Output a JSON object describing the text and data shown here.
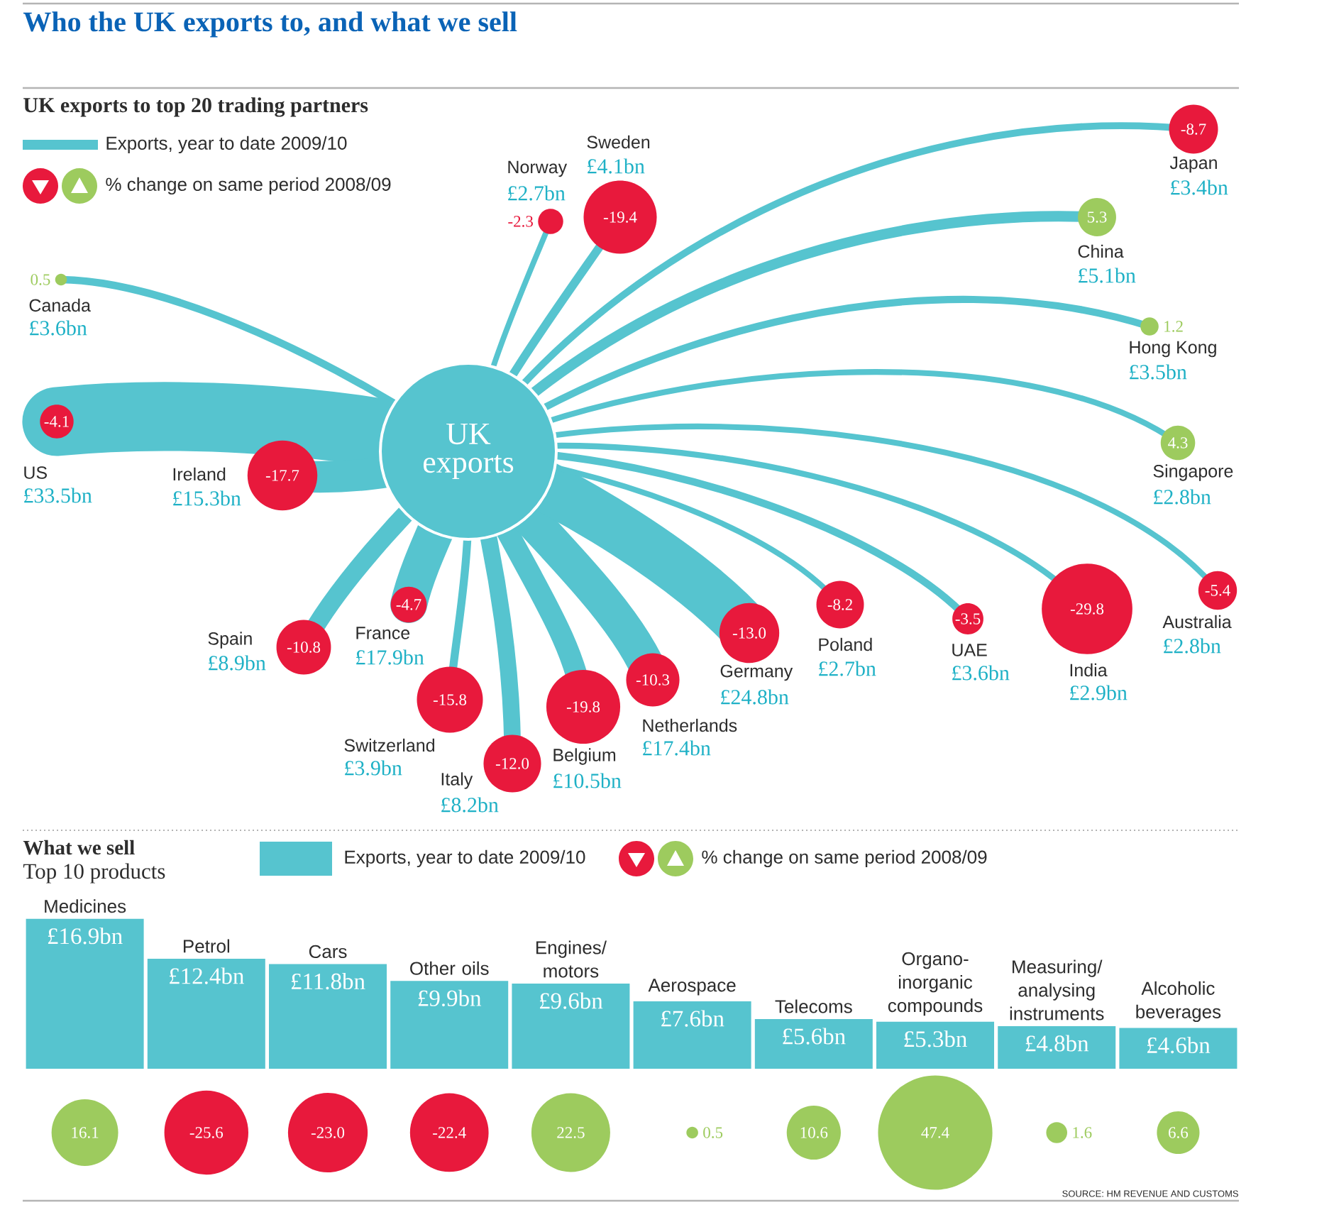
{
  "chart_data": [
    {
      "type": "other",
      "title": "Who the UK exports to, and what we sell",
      "subtitle": "UK exports to top 20 trading partners",
      "categories": [
        "Canada",
        "US",
        "Ireland",
        "Spain",
        "France",
        "Switzerland",
        "Italy",
        "Belgium",
        "Netherlands",
        "Germany",
        "Poland",
        "UAE",
        "India",
        "Australia",
        "Singapore",
        "Hong Kong",
        "China",
        "Japan",
        "Sweden",
        "Norway"
      ],
      "series": [
        {
          "name": "Exports, year to date 2009/10",
          "color": "#56c4cf",
          "values": [
            3.6,
            33.5,
            15.3,
            8.9,
            17.9,
            3.9,
            8.2,
            10.5,
            17.4,
            24.8,
            2.7,
            3.6,
            2.9,
            2.8,
            2.8,
            3.5,
            5.1,
            3.4,
            4.1,
            2.7
          ],
          "value_labels": [
            "£3.6bn",
            "£33.5bn",
            "£15.3bn",
            "£8.9bn",
            "£17.9bn",
            "£3.9bn",
            "£8.2bn",
            "£10.5bn",
            "£17.4bn",
            "£24.8bn",
            "£2.7bn",
            "£3.6bn",
            "£2.9bn",
            "£2.8bn",
            "£2.8bn",
            "£3.5bn",
            "£5.1bn",
            "£3.4bn",
            "£4.1bn",
            "£2.7bn"
          ]
        },
        {
          "name": "% change on same period 2008/09",
          "colors": [
            "#9dcb5e",
            "#e8193c",
            "#e8193c",
            "#e8193c",
            "#e8193c",
            "#e8193c",
            "#e8193c",
            "#e8193c",
            "#e8193c",
            "#e8193c",
            "#e8193c",
            "#e8193c",
            "#e8193c",
            "#e8193c",
            "#9dcb5e",
            "#9dcb5e",
            "#9dcb5e",
            "#e8193c",
            "#e8193c",
            "#e8193c"
          ],
          "values": [
            0.5,
            -4.1,
            -17.7,
            -10.8,
            -4.7,
            -15.8,
            -12.0,
            -19.8,
            -10.3,
            -13.0,
            -8.2,
            -3.5,
            -29.8,
            -5.4,
            4.3,
            1.2,
            5.3,
            -8.7,
            -19.4,
            -2.3
          ],
          "value_labels": [
            "0.5",
            "-4.1",
            "-17.7",
            "-10.8",
            "-4.7",
            "-15.8",
            "-12.0",
            "-19.8",
            "-10.3",
            "-13.0",
            "-8.2",
            "-3.5",
            "-29.8",
            "-5.4",
            "4.3",
            "1.2",
            "5.3",
            "-8.7",
            "-19.4",
            "-2.3"
          ]
        }
      ],
      "annotations": [
        "UK exports"
      ],
      "legend": "top left"
    },
    {
      "type": "bar",
      "title": "What we sell",
      "subtitle": "Top 10 products",
      "categories": [
        "Medicines",
        "Petrol",
        "Cars",
        "Other oils",
        "Engines/motors",
        "Aerospace",
        "Telecoms",
        "Organo-inorganic compounds",
        "Measuring/analysing instruments",
        "Alcoholic beverages"
      ],
      "series": [
        {
          "name": "Exports, year to date 2009/10",
          "color": "#56c4cf",
          "values": [
            16.9,
            12.4,
            11.8,
            9.9,
            9.6,
            7.6,
            5.6,
            5.3,
            4.8,
            4.6
          ],
          "value_labels": [
            "£16.9bn",
            "£12.4bn",
            "£11.8bn",
            "£9.9bn",
            "£9.6bn",
            "£7.6bn",
            "£5.6bn",
            "£5.3bn",
            "£4.8bn",
            "£4.6bn"
          ]
        }
      ],
      "legend": "top"
    },
    {
      "type": "other",
      "categories": [
        null,
        null,
        null,
        null,
        null,
        null,
        null,
        null,
        null,
        null
      ],
      "series": [
        {
          "name": "% change on same period 2008/09",
          "colors": [
            "#9dcb5e",
            "#e8193c",
            "#e8193c",
            "#e8193c",
            "#9dcb5e",
            "#9dcb5e",
            "#9dcb5e",
            "#9dcb5e",
            "#9dcb5e",
            "#9dcb5e"
          ],
          "values": [
            16.1,
            -25.6,
            -23.0,
            -22.4,
            22.5,
            0.5,
            10.6,
            47.4,
            1.6,
            6.6
          ],
          "value_labels": [
            "16.1",
            "-25.6",
            "-23.0",
            "-22.4",
            "22.5",
            "0.5",
            "10.6",
            "47.4",
            "1.6",
            "6.6"
          ]
        }
      ],
      "annotations": [
        "SOURCE: HM REVENUE AND CUSTOMS"
      ],
      "legend": "top"
    }
  ]
}
